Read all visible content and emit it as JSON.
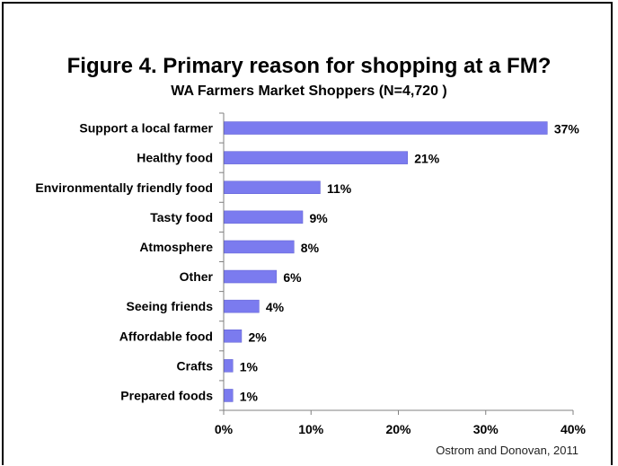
{
  "chart_data": {
    "type": "bar",
    "orientation": "horizontal",
    "title": "Figure 4. Primary reason for shopping at a FM?",
    "subtitle": "WA Farmers Market Shoppers (N=4,720 )",
    "categories": [
      "Support a local farmer",
      "Healthy food",
      "Environmentally friendly food",
      "Tasty food",
      "Atmosphere",
      "Other",
      "Seeing friends",
      "Affordable food",
      "Crafts",
      "Prepared foods"
    ],
    "values": [
      37,
      21,
      11,
      9,
      8,
      6,
      4,
      2,
      1,
      1
    ],
    "value_labels": [
      "37%",
      "21%",
      "11%",
      "9%",
      "8%",
      "6%",
      "4%",
      "2%",
      "1%",
      "1%"
    ],
    "xlim": [
      0,
      40
    ],
    "x_ticks": [
      0,
      10,
      20,
      30,
      40
    ],
    "x_tick_labels": [
      "0%",
      "10%",
      "20%",
      "30%",
      "40%"
    ],
    "xlabel": "",
    "ylabel": "",
    "grid": false,
    "bar_color": "#7b7bef",
    "source": "Ostrom and Donovan, 2011"
  }
}
